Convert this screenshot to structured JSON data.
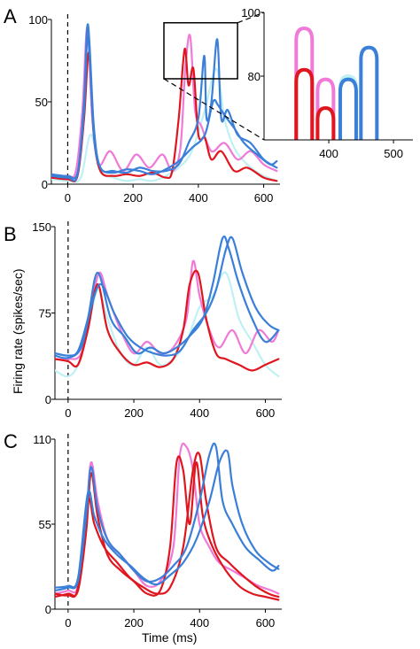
{
  "colors": {
    "pink": "#f07ad8",
    "red": "#e0161f",
    "lightcyan": "#bff1f4",
    "blue": "#3a7fd8",
    "axis": "#000000"
  },
  "xlabel": "Time (ms)",
  "ylabel": "Firing rate (spikes/sec)",
  "chart_data": [
    {
      "type": "line",
      "panel_label": "A",
      "xlim": [
        -50,
        650
      ],
      "ylim": [
        0,
        100
      ],
      "xticks": [
        0,
        200,
        400,
        600
      ],
      "yticks": [
        0,
        50,
        100
      ],
      "series": [
        {
          "color": "pink",
          "x": [
            -50,
            0,
            25,
            45,
            60,
            75,
            95,
            130,
            170,
            210,
            250,
            290,
            320,
            345,
            360,
            375,
            390,
            410,
            440,
            480,
            520,
            560,
            600,
            640
          ],
          "y": [
            5,
            5,
            8,
            45,
            95,
            40,
            12,
            20,
            8,
            18,
            10,
            18,
            8,
            22,
            70,
            90,
            45,
            35,
            20,
            25,
            15,
            20,
            12,
            8
          ]
        },
        {
          "color": "red",
          "x": [
            -50,
            0,
            30,
            50,
            65,
            80,
            100,
            140,
            180,
            220,
            260,
            300,
            320,
            340,
            358,
            370,
            385,
            400,
            420,
            440,
            470,
            510,
            550,
            600,
            640
          ],
          "y": [
            4,
            3,
            5,
            40,
            80,
            30,
            8,
            5,
            6,
            5,
            7,
            4,
            8,
            40,
            82,
            60,
            70,
            30,
            28,
            15,
            20,
            8,
            10,
            4,
            2
          ]
        },
        {
          "color": "lightcyan",
          "x": [
            -50,
            0,
            40,
            70,
            100,
            140,
            180,
            220,
            260,
            300,
            340,
            380,
            420,
            455,
            480,
            510,
            550,
            590,
            640
          ],
          "y": [
            3,
            2,
            4,
            30,
            8,
            4,
            2,
            3,
            2,
            5,
            10,
            20,
            45,
            70,
            40,
            22,
            12,
            6,
            2
          ]
        },
        {
          "color": "blue",
          "x": [
            -50,
            0,
            30,
            50,
            62,
            80,
            100,
            140,
            180,
            220,
            260,
            300,
            340,
            370,
            400,
            418,
            425,
            440,
            458,
            470,
            490,
            520,
            560,
            600,
            640
          ],
          "y": [
            5,
            4,
            6,
            50,
            97,
            35,
            10,
            8,
            7,
            10,
            8,
            8,
            12,
            25,
            40,
            78,
            40,
            50,
            88,
            40,
            45,
            30,
            25,
            15,
            10
          ]
        },
        {
          "color": "blue",
          "x": [
            -50,
            0,
            30,
            50,
            62,
            80,
            100,
            140,
            180,
            220,
            260,
            300,
            340,
            380,
            420,
            445,
            460,
            480,
            510,
            540,
            580,
            620,
            640
          ],
          "y": [
            6,
            5,
            7,
            45,
            90,
            30,
            10,
            7,
            9,
            8,
            6,
            9,
            14,
            22,
            30,
            50,
            48,
            42,
            34,
            25,
            18,
            12,
            14
          ]
        }
      ],
      "inset": {
        "xlim": [
          300,
          530
        ],
        "ylim": [
          60,
          100
        ],
        "xticks": [
          400,
          500
        ],
        "yticks": [
          80,
          100
        ],
        "peaks": [
          {
            "color": "pink",
            "x": 362,
            "y": 95
          },
          {
            "color": "red",
            "x": 362,
            "y": 82
          },
          {
            "color": "pink",
            "x": 395,
            "y": 79
          },
          {
            "color": "red",
            "x": 395,
            "y": 70
          },
          {
            "color": "lightcyan",
            "x": 430,
            "y": 80
          },
          {
            "color": "blue",
            "x": 430,
            "y": 79
          },
          {
            "color": "blue",
            "x": 462,
            "y": 89
          }
        ]
      }
    },
    {
      "type": "line",
      "panel_label": "B",
      "xlim": [
        -40,
        650
      ],
      "ylim": [
        0,
        150
      ],
      "xticks": [
        0,
        200,
        400,
        600
      ],
      "yticks": [
        0,
        75,
        150
      ],
      "series": [
        {
          "color": "lightcyan",
          "x": [
            -40,
            0,
            30,
            60,
            90,
            120,
            160,
            200,
            240,
            280,
            320,
            360,
            400,
            440,
            480,
            520,
            560,
            600,
            640
          ],
          "y": [
            25,
            20,
            30,
            60,
            95,
            70,
            40,
            30,
            45,
            30,
            35,
            50,
            80,
            90,
            110,
            70,
            50,
            30,
            20
          ]
        },
        {
          "color": "pink",
          "x": [
            -40,
            0,
            40,
            70,
            95,
            120,
            160,
            200,
            240,
            280,
            320,
            360,
            380,
            400,
            430,
            460,
            500,
            540,
            580,
            620,
            640
          ],
          "y": [
            35,
            35,
            40,
            80,
            110,
            90,
            60,
            40,
            50,
            40,
            45,
            70,
            120,
            90,
            60,
            45,
            60,
            40,
            60,
            50,
            60
          ]
        },
        {
          "color": "red",
          "x": [
            -40,
            0,
            30,
            60,
            90,
            120,
            160,
            200,
            240,
            280,
            320,
            350,
            370,
            395,
            420,
            450,
            480,
            520,
            560,
            600,
            640
          ],
          "y": [
            35,
            33,
            30,
            60,
            100,
            60,
            40,
            30,
            32,
            28,
            35,
            60,
            100,
            110,
            70,
            40,
            35,
            30,
            25,
            30,
            35
          ]
        },
        {
          "color": "blue",
          "x": [
            -40,
            0,
            30,
            60,
            90,
            130,
            170,
            210,
            250,
            290,
            330,
            370,
            410,
            440,
            470,
            490,
            520,
            560,
            600,
            640
          ],
          "y": [
            40,
            38,
            42,
            70,
            110,
            70,
            55,
            40,
            45,
            40,
            45,
            55,
            70,
            100,
            140,
            130,
            100,
            70,
            50,
            60
          ]
        },
        {
          "color": "blue",
          "x": [
            -40,
            0,
            40,
            70,
            100,
            140,
            180,
            220,
            260,
            300,
            340,
            380,
            420,
            450,
            480,
            500,
            530,
            570,
            610,
            640
          ],
          "y": [
            38,
            36,
            45,
            80,
            100,
            75,
            55,
            45,
            40,
            38,
            42,
            60,
            75,
            95,
            130,
            140,
            110,
            80,
            65,
            60
          ]
        }
      ]
    },
    {
      "type": "line",
      "panel_label": "C",
      "xlim": [
        -40,
        650
      ],
      "ylim": [
        0,
        110
      ],
      "xticks": [
        0,
        200,
        400,
        600
      ],
      "yticks": [
        0,
        55,
        110
      ],
      "series": [
        {
          "color": "pink",
          "x": [
            -40,
            0,
            30,
            55,
            70,
            90,
            120,
            160,
            200,
            240,
            280,
            320,
            340,
            360,
            380,
            400,
            430,
            460,
            500,
            540,
            580,
            620,
            640
          ],
          "y": [
            10,
            12,
            15,
            60,
            95,
            70,
            45,
            35,
            25,
            15,
            18,
            40,
            100,
            105,
            90,
            55,
            40,
            30,
            25,
            20,
            15,
            12,
            10
          ]
        },
        {
          "color": "red",
          "x": [
            -40,
            0,
            30,
            55,
            70,
            90,
            120,
            160,
            200,
            240,
            280,
            310,
            330,
            350,
            370,
            390,
            410,
            440,
            480,
            520,
            560,
            600,
            640
          ],
          "y": [
            8,
            10,
            12,
            50,
            88,
            60,
            35,
            25,
            18,
            10,
            12,
            40,
            95,
            90,
            55,
            95,
            60,
            40,
            25,
            15,
            10,
            8,
            6
          ]
        },
        {
          "color": "red",
          "x": [
            -40,
            0,
            30,
            60,
            80,
            110,
            150,
            190,
            230,
            270,
            310,
            350,
            380,
            400,
            420,
            450,
            490,
            530,
            570,
            610,
            640
          ],
          "y": [
            10,
            9,
            14,
            70,
            55,
            40,
            30,
            20,
            14,
            10,
            14,
            40,
            90,
            100,
            70,
            40,
            30,
            22,
            15,
            10,
            8
          ]
        },
        {
          "color": "blue",
          "x": [
            -40,
            0,
            30,
            55,
            70,
            90,
            120,
            160,
            200,
            240,
            280,
            320,
            360,
            400,
            430,
            450,
            470,
            500,
            540,
            580,
            620,
            640
          ],
          "y": [
            12,
            14,
            18,
            60,
            92,
            65,
            45,
            35,
            25,
            18,
            20,
            28,
            40,
            70,
            100,
            105,
            70,
            55,
            40,
            32,
            25,
            28
          ]
        },
        {
          "color": "blue",
          "x": [
            -40,
            0,
            30,
            60,
            80,
            110,
            150,
            190,
            230,
            270,
            310,
            350,
            390,
            430,
            460,
            485,
            500,
            530,
            570,
            610,
            640
          ],
          "y": [
            14,
            15,
            20,
            75,
            60,
            45,
            35,
            28,
            20,
            16,
            22,
            30,
            45,
            70,
            95,
            102,
            80,
            55,
            38,
            30,
            26
          ]
        }
      ]
    }
  ]
}
